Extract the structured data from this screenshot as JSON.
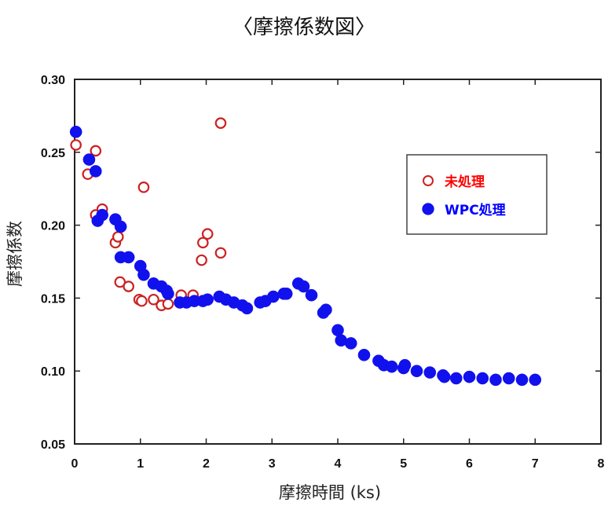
{
  "title": "〈摩擦係数図〉",
  "chart_data": {
    "type": "scatter",
    "xlabel": "摩擦時間 (ks)",
    "ylabel": "摩擦係数",
    "xlim": [
      0,
      8
    ],
    "ylim": [
      0.05,
      0.3
    ],
    "xticks": [
      0,
      1,
      2,
      3,
      4,
      5,
      6,
      7,
      8
    ],
    "yticks": [
      0.05,
      0.1,
      0.15,
      0.2,
      0.25,
      0.3
    ],
    "ytick_labels": [
      "0.05",
      "0.10",
      "0.15",
      "0.20",
      "0.25",
      "0.30"
    ],
    "legend_position": "upper-right",
    "series": [
      {
        "name": "未処理",
        "marker": "open-circle",
        "color": "#cc2222",
        "label_color": "#ff0000",
        "points": [
          [
            0.02,
            0.255
          ],
          [
            0.2,
            0.235
          ],
          [
            0.32,
            0.251
          ],
          [
            0.32,
            0.207
          ],
          [
            0.42,
            0.211
          ],
          [
            0.62,
            0.188
          ],
          [
            0.66,
            0.192
          ],
          [
            0.69,
            0.161
          ],
          [
            0.82,
            0.158
          ],
          [
            0.98,
            0.149
          ],
          [
            1.02,
            0.148
          ],
          [
            1.05,
            0.226
          ],
          [
            1.2,
            0.149
          ],
          [
            1.32,
            0.145
          ],
          [
            1.42,
            0.146
          ],
          [
            1.62,
            0.152
          ],
          [
            1.8,
            0.152
          ],
          [
            1.93,
            0.176
          ],
          [
            1.95,
            0.188
          ],
          [
            2.02,
            0.194
          ],
          [
            2.22,
            0.27
          ],
          [
            2.22,
            0.181
          ]
        ]
      },
      {
        "name": "WPC処理",
        "marker": "filled-circle",
        "color": "#1111ee",
        "label_color": "#0000ff",
        "points": [
          [
            0.02,
            0.264
          ],
          [
            0.22,
            0.245
          ],
          [
            0.32,
            0.237
          ],
          [
            0.35,
            0.203
          ],
          [
            0.42,
            0.207
          ],
          [
            0.62,
            0.204
          ],
          [
            0.7,
            0.199
          ],
          [
            0.7,
            0.178
          ],
          [
            0.82,
            0.178
          ],
          [
            1.0,
            0.172
          ],
          [
            1.05,
            0.166
          ],
          [
            1.2,
            0.16
          ],
          [
            1.32,
            0.158
          ],
          [
            1.4,
            0.155
          ],
          [
            1.42,
            0.153
          ],
          [
            1.6,
            0.147
          ],
          [
            1.7,
            0.147
          ],
          [
            1.82,
            0.148
          ],
          [
            1.95,
            0.148
          ],
          [
            2.02,
            0.149
          ],
          [
            2.2,
            0.151
          ],
          [
            2.3,
            0.149
          ],
          [
            2.42,
            0.147
          ],
          [
            2.55,
            0.145
          ],
          [
            2.62,
            0.143
          ],
          [
            2.82,
            0.147
          ],
          [
            2.9,
            0.148
          ],
          [
            3.02,
            0.151
          ],
          [
            3.18,
            0.153
          ],
          [
            3.22,
            0.153
          ],
          [
            3.4,
            0.16
          ],
          [
            3.48,
            0.158
          ],
          [
            3.6,
            0.152
          ],
          [
            3.78,
            0.14
          ],
          [
            3.82,
            0.142
          ],
          [
            4.0,
            0.128
          ],
          [
            4.05,
            0.121
          ],
          [
            4.2,
            0.119
          ],
          [
            4.4,
            0.111
          ],
          [
            4.62,
            0.107
          ],
          [
            4.7,
            0.104
          ],
          [
            4.82,
            0.103
          ],
          [
            5.0,
            0.102
          ],
          [
            5.02,
            0.104
          ],
          [
            5.2,
            0.1
          ],
          [
            5.4,
            0.099
          ],
          [
            5.6,
            0.097
          ],
          [
            5.62,
            0.096
          ],
          [
            5.8,
            0.095
          ],
          [
            6.0,
            0.096
          ],
          [
            6.2,
            0.095
          ],
          [
            6.4,
            0.094
          ],
          [
            6.6,
            0.095
          ],
          [
            6.8,
            0.094
          ],
          [
            7.0,
            0.094
          ]
        ]
      }
    ]
  }
}
